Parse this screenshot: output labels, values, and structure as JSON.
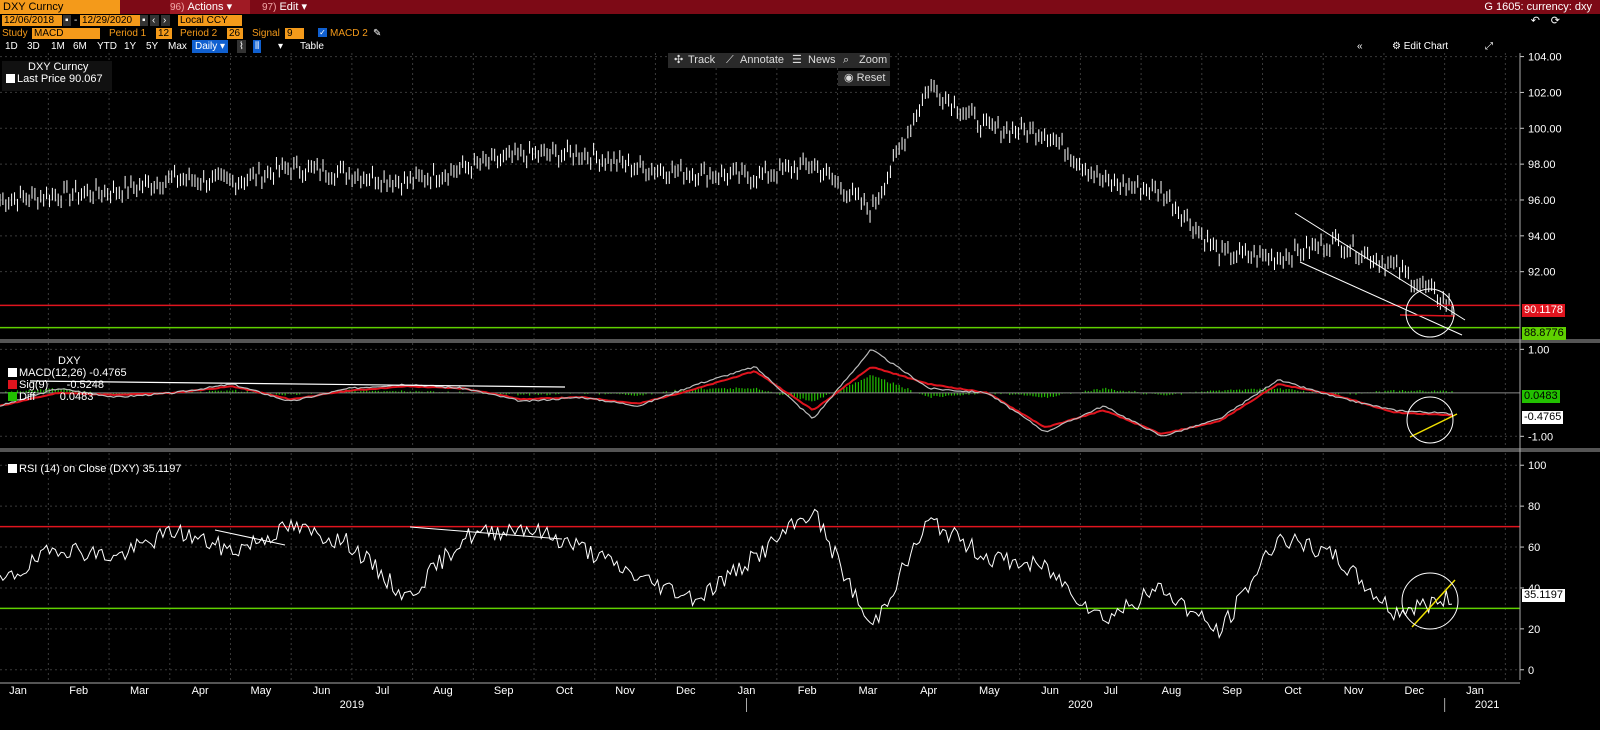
{
  "header": {
    "ticker": "DXY Curncy",
    "menu_actions_num": "96)",
    "menu_actions": "Actions",
    "menu_edit_num": "97)",
    "menu_edit": "Edit",
    "page_label": "G 1605: currency: dxy"
  },
  "controls": {
    "start_date": "12/06/2018",
    "end_date": "12/29/2020",
    "currency": "Local CCY",
    "study_label": "Study",
    "study_value": "MACD",
    "period1_label": "Period 1",
    "period1_value": "12",
    "period2_label": "Period 2",
    "period2_value": "26",
    "signal_label": "Signal",
    "signal_value": "9",
    "macd2_label": "MACD 2",
    "ranges": [
      "1D",
      "3D",
      "1M",
      "6M",
      "YTD",
      "1Y",
      "5Y",
      "Max"
    ],
    "interval": "Daily",
    "table_label": "Table",
    "edit_chart": "Edit Chart"
  },
  "toolbar": {
    "track": "Track",
    "annotate": "Annotate",
    "news": "News",
    "zoom": "Zoom",
    "reset": "Reset"
  },
  "legend": {
    "price_title": "DXY Curncy",
    "last_price": "Last Price 90.067",
    "macd_title": "DXY",
    "macd_line": "MACD(12,26) -0.4765",
    "sig_line": "Sig(9)      -0.5248",
    "diff_line": "Diff        0.0483",
    "rsi_line": "RSI (14)  on Close (DXY) 35.1197"
  },
  "price_tags": {
    "red": "90.1178",
    "green": "88.8776",
    "macd_diff": "0.0483",
    "macd": "-0.4765",
    "rsi": "35.1197"
  },
  "colors": {
    "bg": "#000000",
    "accent": "#f49a1a",
    "title_bar": "#7d0a16",
    "red_line": "#e0141e",
    "green_line": "#5fd000",
    "yellow": "#f0e000",
    "diff_green": "#22c000"
  },
  "chart_data": [
    {
      "type": "line",
      "title": "DXY Curncy",
      "series": [
        {
          "name": "Last Price",
          "x": [
            "2018-12",
            "2019-01",
            "2019-02",
            "2019-03",
            "2019-04",
            "2019-05",
            "2019-06",
            "2019-07",
            "2019-08",
            "2019-09",
            "2019-10",
            "2019-11",
            "2019-12",
            "2020-01",
            "2020-02",
            "2020-03-10",
            "2020-03-20",
            "2020-04",
            "2020-05",
            "2020-06",
            "2020-07",
            "2020-08",
            "2020-09",
            "2020-10",
            "2020-11",
            "2020-12-29"
          ],
          "y": [
            96.0,
            96.3,
            96.5,
            97.2,
            97.0,
            97.8,
            97.5,
            97.0,
            97.8,
            98.5,
            98.6,
            97.8,
            97.5,
            97.3,
            98.0,
            95.4,
            102.4,
            100.0,
            99.8,
            97.0,
            96.5,
            93.0,
            92.8,
            93.7,
            92.3,
            90.07
          ]
        }
      ],
      "yticks": [
        92.0,
        94.0,
        96.0,
        98.0,
        100.0,
        102.0,
        104.0
      ],
      "ylim": [
        88.3,
        104.2
      ],
      "xticks": [
        "Jan",
        "Feb",
        "Mar",
        "Apr",
        "May",
        "Jun",
        "Jul",
        "Aug",
        "Sep",
        "Oct",
        "Nov",
        "Dec",
        "Jan",
        "Feb",
        "Mar",
        "Apr",
        "May",
        "Jun",
        "Jul",
        "Aug",
        "Sep",
        "Oct",
        "Nov",
        "Dec",
        "Jan"
      ],
      "years": [
        "2019",
        "2020",
        "2021"
      ],
      "hlines": [
        90.1178,
        88.8776
      ]
    },
    {
      "type": "line",
      "title": "DXY",
      "series": [
        {
          "name": "MACD(12,26)",
          "values": [
            -0.3,
            0.1,
            -0.1,
            0.0,
            0.2,
            -0.2,
            0.1,
            0.2,
            0.1,
            -0.2,
            -0.1,
            -0.3,
            0.2,
            0.6,
            -0.6,
            1.0,
            0.1,
            0.0,
            -0.9,
            -0.3,
            -1.0,
            -0.6,
            0.3,
            -0.1,
            -0.4,
            -0.48
          ]
        },
        {
          "name": "Sig(9)",
          "values": [
            -0.3,
            0.0,
            -0.05,
            0.0,
            0.15,
            -0.15,
            0.05,
            0.15,
            0.1,
            -0.15,
            -0.1,
            -0.25,
            0.1,
            0.5,
            -0.4,
            0.6,
            0.2,
            0.0,
            -0.8,
            -0.4,
            -0.95,
            -0.65,
            0.2,
            -0.05,
            -0.45,
            -0.52
          ]
        }
      ],
      "yticks": [
        -1.0,
        1.0
      ],
      "ylim": [
        -1.2,
        1.1
      ]
    },
    {
      "type": "line",
      "title": "RSI (14) on Close (DXY)",
      "series": [
        {
          "name": "RSI",
          "values": [
            42,
            60,
            55,
            68,
            58,
            70,
            62,
            35,
            65,
            70,
            60,
            45,
            35,
            55,
            78,
            20,
            73,
            55,
            50,
            25,
            40,
            18,
            65,
            55,
            28,
            35.1
          ]
        }
      ],
      "yticks": [
        0,
        20,
        40,
        60,
        80,
        100
      ],
      "ylim": [
        -5,
        105
      ],
      "hlines": [
        70,
        30
      ]
    }
  ]
}
